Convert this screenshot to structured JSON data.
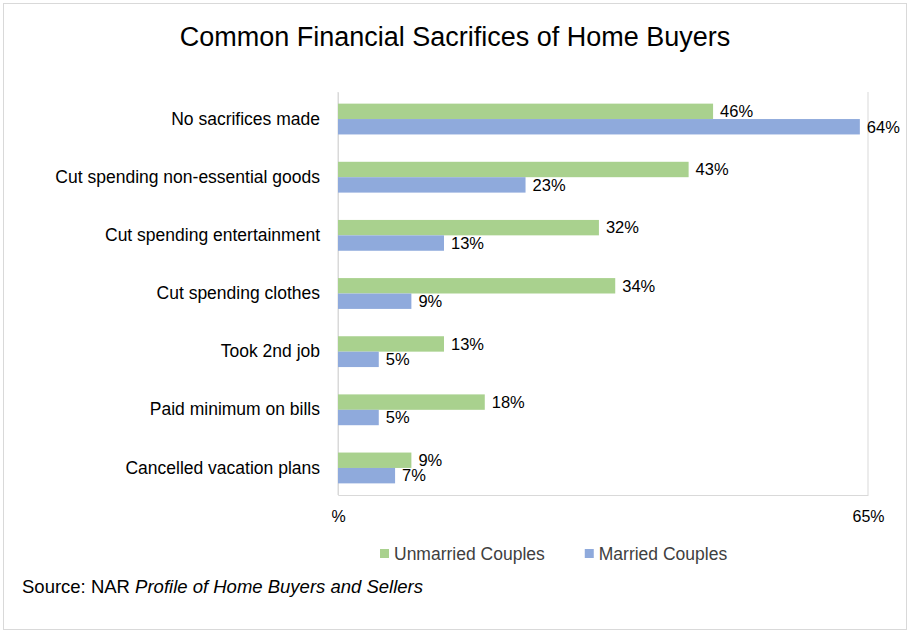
{
  "chart_data": {
    "type": "bar",
    "orientation": "horizontal",
    "title": "Common Financial Sacrifices of Home Buyers",
    "categories": [
      "No sacrifices made",
      "Cut spending non-essential goods",
      "Cut spending entertainment",
      "Cut spending clothes",
      "Took 2nd job",
      "Paid minimum on bills",
      "Cancelled vacation plans"
    ],
    "series": [
      {
        "name": "Unmarried Couples",
        "color": "#a9d18e",
        "values": [
          46,
          43,
          32,
          34,
          13,
          18,
          9
        ],
        "value_labels": [
          "46%",
          "43%",
          "32%",
          "34%",
          "13%",
          "18%",
          "9%"
        ]
      },
      {
        "name": "Married Couples",
        "color": "#8faadc",
        "values": [
          64,
          23,
          13,
          9,
          5,
          5,
          7
        ],
        "value_labels": [
          "64%",
          "23%",
          "13%",
          "9%",
          "5%",
          "5%",
          "7%"
        ]
      }
    ],
    "xlim": [
      0,
      65
    ],
    "xticks": [
      {
        "value": 0,
        "label": "%"
      },
      {
        "value": 65,
        "label": "65%"
      }
    ],
    "grid": true,
    "data_labels": true,
    "legend": "bottom",
    "source": [
      "Source: NAR ",
      "Profile of Home Buyers and Sellers"
    ]
  }
}
